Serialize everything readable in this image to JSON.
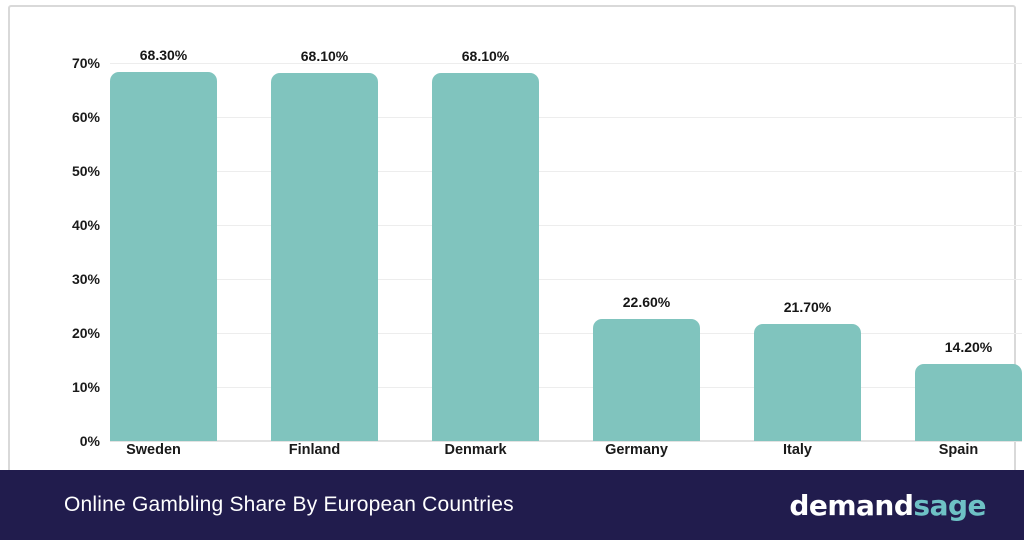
{
  "page": {
    "background": "#FFFFFF",
    "card_border_color": "#D9D9D9"
  },
  "chart_data": {
    "type": "bar",
    "title": "Online Gambling Share By European Countries",
    "categories": [
      "Sweden",
      "Finland",
      "Denmark",
      "Germany",
      "Italy",
      "Spain"
    ],
    "values": [
      68.3,
      68.1,
      68.1,
      22.6,
      21.7,
      14.2
    ],
    "value_labels": [
      "68.30%",
      "68.10%",
      "68.10%",
      "22.60%",
      "21.70%",
      "14.20%"
    ],
    "y_ticks": [
      {
        "value": 70,
        "label": "70%"
      },
      {
        "value": 60,
        "label": "60%"
      },
      {
        "value": 50,
        "label": "50%"
      },
      {
        "value": 40,
        "label": "40%"
      },
      {
        "value": 30,
        "label": "30%"
      },
      {
        "value": 20,
        "label": "20%"
      },
      {
        "value": 10,
        "label": "10%"
      },
      {
        "value": 0,
        "label": "0%"
      }
    ],
    "ylim": [
      0,
      70
    ],
    "xlabel": "",
    "ylabel": "",
    "grid": true,
    "legend": false,
    "bar_color": "#80C4BE",
    "gridline_color": "#EDEDED",
    "baseline_color": "#E2E2E2",
    "label_color": "#1A1A1A"
  },
  "footer": {
    "title": "Online Gambling Share By European Countries",
    "background": "#211C4D",
    "logo": {
      "white_part": "demand",
      "teal_part": "sage",
      "teal_color": "#6EC1C5"
    }
  }
}
